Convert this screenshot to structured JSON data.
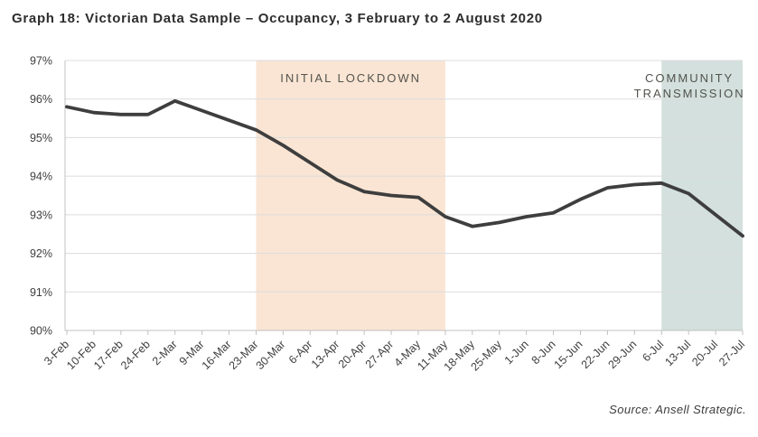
{
  "header": {
    "title": "Graph 18: Victorian Data Sample – Occupancy, 3 February to 2 August 2020"
  },
  "footer": {
    "source": "Source: Ansell Strategic."
  },
  "chart_data": {
    "type": "line",
    "title": "Graph 18: Victorian Data Sample – Occupancy, 3 February to 2 August 2020",
    "xlabel": "",
    "ylabel": "",
    "ylim": [
      90,
      97
    ],
    "yticks": [
      90,
      91,
      92,
      93,
      94,
      95,
      96,
      97
    ],
    "ytick_suffix": "%",
    "grid": true,
    "legend": "none",
    "categories": [
      "3-Feb",
      "10-Feb",
      "17-Feb",
      "24-Feb",
      "2-Mar",
      "9-Mar",
      "16-Mar",
      "23-Mar",
      "30-Mar",
      "6-Apr",
      "13-Apr",
      "20-Apr",
      "27-Apr",
      "4-May",
      "11-May",
      "18-May",
      "25-May",
      "1-Jun",
      "8-Jun",
      "15-Jun",
      "22-Jun",
      "29-Jun",
      "6-Jul",
      "13-Jul",
      "20-Jul",
      "27-Jul"
    ],
    "series": [
      {
        "name": "Occupancy",
        "color": "#3e3e3e",
        "values": [
          95.8,
          95.65,
          95.6,
          95.6,
          95.95,
          95.7,
          95.45,
          95.2,
          94.8,
          94.35,
          93.9,
          93.6,
          93.5,
          93.45,
          92.95,
          92.7,
          92.8,
          92.95,
          93.05,
          93.4,
          93.7,
          93.78,
          93.82,
          93.55,
          93.0,
          92.45
        ]
      }
    ],
    "regions": [
      {
        "label_lines": [
          "INITIAL LOCKDOWN"
        ],
        "from": "23-Mar",
        "to": "11-May",
        "color": "#fae5d4"
      },
      {
        "label_lines": [
          "COMMUNITY",
          "TRANSMISSION"
        ],
        "from": "6-Jul",
        "to": "27-Jul",
        "color": "#d3e0dd"
      }
    ],
    "colors": {
      "grid": "#dcdcdc",
      "axis": "#c0c0c0",
      "tick_label": "#3e3e3e",
      "region_label": "#52534d",
      "line": "#3e3e3e"
    }
  }
}
